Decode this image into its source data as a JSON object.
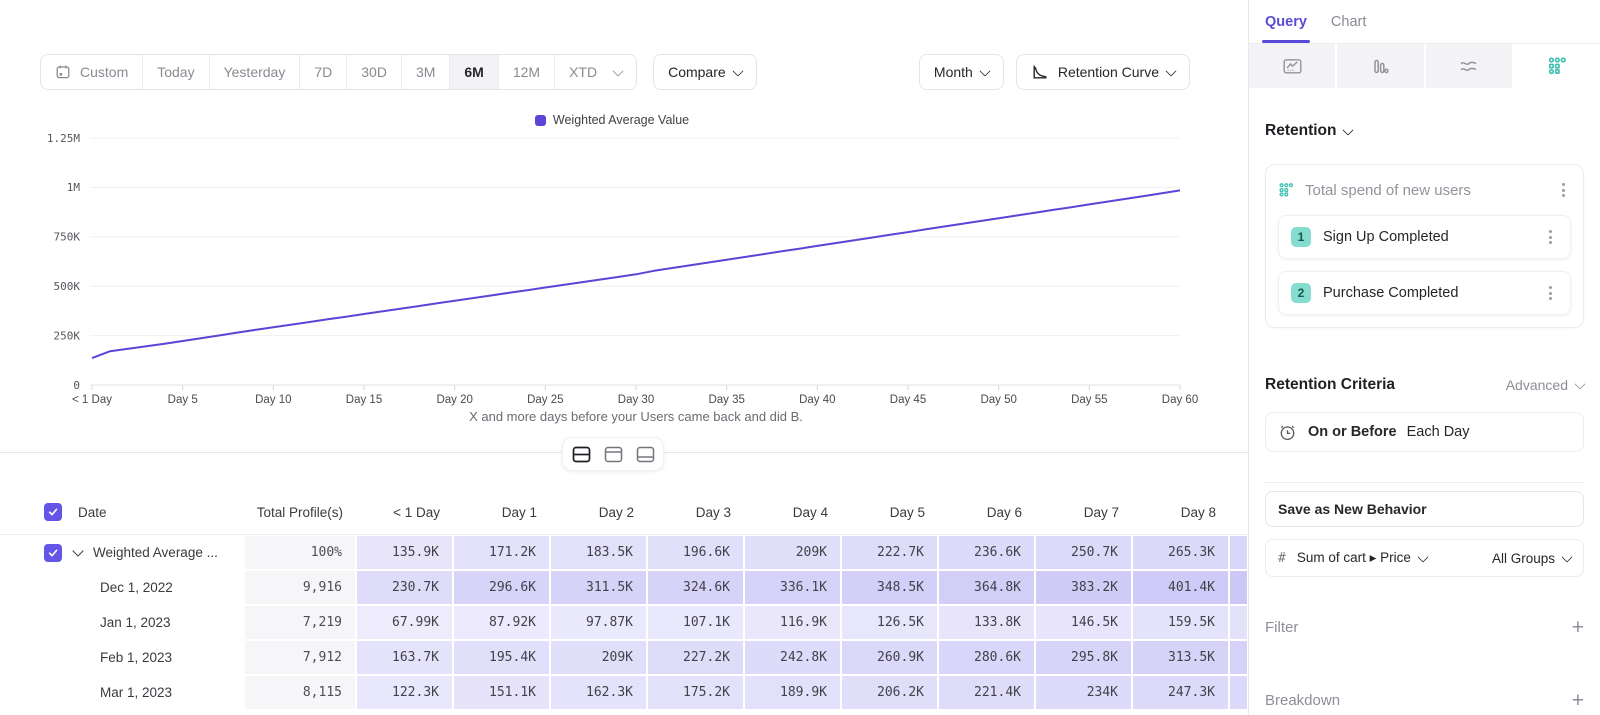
{
  "colors": {
    "accent_purple": "#5b4ad6",
    "line_purple": "#5b45d6",
    "cell_purple": "#6758e6",
    "accent_teal": "#3fc0b2",
    "badge_teal_bg": "#86dccf"
  },
  "toolbar": {
    "ranges": [
      {
        "label": "Custom",
        "icon": "calendar"
      },
      {
        "label": "Today"
      },
      {
        "label": "Yesterday"
      },
      {
        "label": "7D"
      },
      {
        "label": "30D"
      },
      {
        "label": "3M"
      },
      {
        "label": "6M",
        "active": true
      },
      {
        "label": "12M"
      },
      {
        "label": "XTD",
        "chevron": true
      }
    ],
    "compare_label": "Compare",
    "granularity_label": "Month",
    "chart_type_label": "Retention Curve"
  },
  "chart_data": {
    "type": "line",
    "legend_label": "Weighted Average Value",
    "caption": "X and more days before your Users came back and did B.",
    "ylim": [
      0,
      1250000
    ],
    "grid": true,
    "legend_position": "top-center",
    "y_ticks": [
      {
        "value": 0,
        "label": "0"
      },
      {
        "value": 250000,
        "label": "250K"
      },
      {
        "value": 500000,
        "label": "500K"
      },
      {
        "value": 750000,
        "label": "750K"
      },
      {
        "value": 1000000,
        "label": "1M"
      },
      {
        "value": 1250000,
        "label": "1.25M"
      }
    ],
    "x_ticks": [
      {
        "day": 0,
        "label": "< 1 Day"
      },
      {
        "day": 5,
        "label": "Day 5"
      },
      {
        "day": 10,
        "label": "Day 10"
      },
      {
        "day": 15,
        "label": "Day 15"
      },
      {
        "day": 20,
        "label": "Day 20"
      },
      {
        "day": 25,
        "label": "Day 25"
      },
      {
        "day": 30,
        "label": "Day 30"
      },
      {
        "day": 35,
        "label": "Day 35"
      },
      {
        "day": 40,
        "label": "Day 40"
      },
      {
        "day": 45,
        "label": "Day 45"
      },
      {
        "day": 50,
        "label": "Day 50"
      },
      {
        "day": 55,
        "label": "Day 55"
      },
      {
        "day": 60,
        "label": "Day 60"
      }
    ],
    "series": [
      {
        "name": "Weighted Average Value",
        "color": "#5b45d6",
        "values_k": [
          135.9,
          171.2,
          183.5,
          196.6,
          209,
          222.7,
          236.6,
          250.7,
          265.3,
          278.8,
          292.2,
          305.6,
          319,
          332.4,
          345.8,
          359.2,
          372.6,
          386,
          399.4,
          412.8,
          426.2,
          439.6,
          453,
          466.4,
          479.8,
          493.2,
          506.6,
          520,
          533.4,
          546.8,
          560.2,
          578,
          592,
          606,
          620,
          634,
          648,
          662,
          676,
          690,
          704,
          718,
          732,
          746,
          760,
          774,
          788,
          802,
          816,
          830,
          844,
          858,
          872,
          886,
          900,
          914,
          928,
          942,
          956,
          970,
          985
        ]
      }
    ]
  },
  "layout_toggle": {
    "active_index": 0,
    "options": [
      "split-view",
      "chart-view",
      "table-view"
    ]
  },
  "table": {
    "header": {
      "date": "Date",
      "total": "Total Profile(s)",
      "days": [
        "< 1 Day",
        "Day 1",
        "Day 2",
        "Day 3",
        "Day 4",
        "Day 5",
        "Day 6",
        "Day 7",
        "Day 8"
      ]
    },
    "rows": [
      {
        "label": "Weighted Average ...",
        "checked": true,
        "total": "100%",
        "values": [
          "135.9K",
          "171.2K",
          "183.5K",
          "196.6K",
          "209K",
          "222.7K",
          "236.6K",
          "250.7K",
          "265.3K"
        ]
      },
      {
        "label": "Dec 1, 2022",
        "total": "9,916",
        "values": [
          "230.7K",
          "296.6K",
          "311.5K",
          "324.6K",
          "336.1K",
          "348.5K",
          "364.8K",
          "383.2K",
          "401.4K"
        ]
      },
      {
        "label": "Jan 1, 2023",
        "total": "7,219",
        "values": [
          "67.99K",
          "87.92K",
          "97.87K",
          "107.1K",
          "116.9K",
          "126.5K",
          "133.8K",
          "146.5K",
          "159.5K"
        ]
      },
      {
        "label": "Feb 1, 2023",
        "total": "7,912",
        "values": [
          "163.7K",
          "195.4K",
          "209K",
          "227.2K",
          "242.8K",
          "260.9K",
          "280.6K",
          "295.8K",
          "313.5K"
        ]
      },
      {
        "label": "Mar 1, 2023",
        "total": "8,115",
        "values": [
          "122.3K",
          "151.1K",
          "162.3K",
          "175.2K",
          "189.9K",
          "206.2K",
          "221.4K",
          "234K",
          "247.3K"
        ]
      }
    ]
  },
  "sidebar": {
    "tabs": [
      {
        "label": "Query",
        "active": true
      },
      {
        "label": "Chart"
      }
    ],
    "section_title": "Retention",
    "behavior": {
      "title": "Total spend of new users",
      "events": [
        {
          "index": "1",
          "label": "Sign Up Completed"
        },
        {
          "index": "2",
          "label": "Purchase Completed"
        }
      ]
    },
    "criteria": {
      "title": "Retention Criteria",
      "mode": "Advanced",
      "when": "On or Before",
      "period": "Each Day"
    },
    "save_label": "Save as New Behavior",
    "measure": {
      "hash": "#",
      "label": "Sum of cart ▸ Price",
      "groups": "All Groups"
    },
    "filter_label": "Filter",
    "breakdown_label": "Breakdown",
    "plus_glyph": "+"
  }
}
